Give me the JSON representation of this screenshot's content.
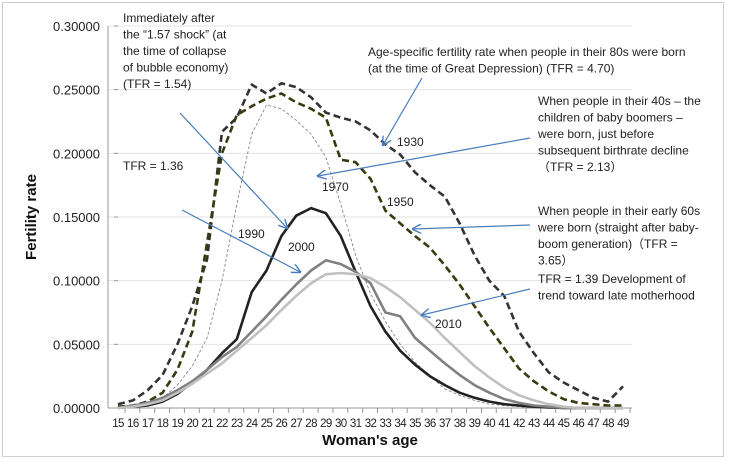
{
  "chart_data": {
    "type": "line",
    "title": "",
    "xlabel": "Woman's age",
    "ylabel": "Fertility rate",
    "ylim": [
      0,
      0.3
    ],
    "yticks": [
      "0.00000",
      "0.05000",
      "0.10000",
      "0.15000",
      "0.20000",
      "0.25000",
      "0.30000"
    ],
    "grid": true,
    "x": [
      15,
      16,
      17,
      18,
      19,
      20,
      21,
      22,
      23,
      24,
      25,
      26,
      27,
      28,
      29,
      30,
      31,
      32,
      33,
      34,
      35,
      36,
      37,
      38,
      39,
      40,
      41,
      42,
      43,
      44,
      45,
      46,
      47,
      48,
      49
    ],
    "series": [
      {
        "name": "1930",
        "style": "dashed",
        "color": "#333333",
        "values": [
          0.003,
          0.006,
          0.014,
          0.026,
          0.05,
          0.08,
          0.117,
          0.217,
          0.228,
          0.254,
          0.247,
          0.255,
          0.252,
          0.244,
          0.232,
          0.228,
          0.225,
          0.218,
          0.207,
          0.199,
          0.185,
          0.175,
          0.166,
          0.145,
          0.12,
          0.1,
          0.088,
          0.06,
          0.043,
          0.028,
          0.02,
          0.014,
          0.008,
          0.005,
          0.017
        ]
      },
      {
        "name": "1950",
        "style": "dashed",
        "color": "#3a3a10",
        "values": [
          0.001,
          0.002,
          0.005,
          0.012,
          0.03,
          0.06,
          0.13,
          0.2,
          0.23,
          0.237,
          0.243,
          0.247,
          0.24,
          0.235,
          0.228,
          0.195,
          0.193,
          0.18,
          0.155,
          0.145,
          0.135,
          0.126,
          0.112,
          0.097,
          0.08,
          0.063,
          0.047,
          0.031,
          0.021,
          0.013,
          0.007,
          0.004,
          0.003,
          0.002,
          0.002
        ]
      },
      {
        "name": "1970",
        "style": "thin-dashed",
        "color": "#888888",
        "values": [
          0,
          0.001,
          0.003,
          0.008,
          0.018,
          0.033,
          0.055,
          0.1,
          0.16,
          0.215,
          0.238,
          0.235,
          0.226,
          0.215,
          0.197,
          0.16,
          0.12,
          0.09,
          0.068,
          0.05,
          0.036,
          0.025,
          0.015,
          0.01,
          0.006,
          0.003,
          0.002,
          0.001,
          0,
          0,
          0,
          0,
          0,
          0,
          0
        ]
      },
      {
        "name": "1990",
        "style": "solid",
        "color": "#222222",
        "values": [
          0,
          0.001,
          0.002,
          0.005,
          0.011,
          0.02,
          0.03,
          0.043,
          0.054,
          0.091,
          0.108,
          0.135,
          0.151,
          0.157,
          0.153,
          0.135,
          0.107,
          0.08,
          0.06,
          0.045,
          0.034,
          0.025,
          0.018,
          0.012,
          0.008,
          0.005,
          0.003,
          0.002,
          0.001,
          0.0005,
          0,
          0,
          0,
          0,
          0
        ]
      },
      {
        "name": "2000",
        "style": "solid",
        "color": "#808080",
        "values": [
          0,
          0.002,
          0.004,
          0.008,
          0.014,
          0.021,
          0.03,
          0.04,
          0.048,
          0.06,
          0.072,
          0.085,
          0.097,
          0.108,
          0.116,
          0.113,
          0.107,
          0.098,
          0.075,
          0.072,
          0.055,
          0.045,
          0.035,
          0.026,
          0.018,
          0.012,
          0.007,
          0.004,
          0.002,
          0.001,
          0,
          0,
          0,
          0,
          0
        ]
      },
      {
        "name": "2010",
        "style": "solid",
        "color": "#c0c0c0",
        "values": [
          0,
          0.001,
          0.003,
          0.006,
          0.012,
          0.019,
          0.027,
          0.035,
          0.045,
          0.055,
          0.065,
          0.077,
          0.088,
          0.098,
          0.105,
          0.106,
          0.105,
          0.102,
          0.095,
          0.087,
          0.077,
          0.067,
          0.055,
          0.044,
          0.033,
          0.024,
          0.016,
          0.01,
          0.006,
          0.003,
          0.001,
          0,
          0,
          0,
          0
        ]
      }
    ],
    "annotations": [
      {
        "lines": [
          "Immediately after",
          "the “1.57 shock” (at",
          "the time of collapse",
          "of bubble economy)",
          "(TFR = 1.54)"
        ],
        "target": "1990"
      },
      {
        "lines": [
          "TFR = 1.36"
        ],
        "target": "2000"
      },
      {
        "lines": [
          "Age-specific fertility rate when people in their 80s were born",
          "(at the time of Great Depression) (TFR = 4.70)"
        ],
        "target": "1930"
      },
      {
        "lines": [
          "When people in their 40s – the",
          "children of baby boomers –",
          "were born, just before",
          "subsequent birthrate decline",
          "（TFR = 2.13）"
        ],
        "target": "1970"
      },
      {
        "lines": [
          "When people in their early 60s",
          "were born (straight after baby-",
          "boom generation)（TFR =",
          "3.65）"
        ],
        "target": "1950"
      },
      {
        "lines": [
          "TFR = 1.39 Development of",
          "trend toward late motherhood"
        ],
        "target": "2010"
      }
    ],
    "arrow_color": "#4a7ebb"
  }
}
